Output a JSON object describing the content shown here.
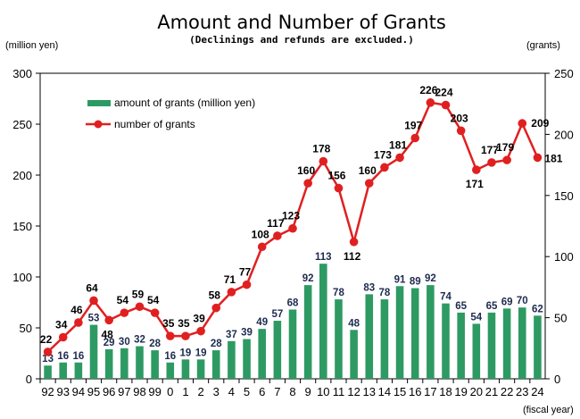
{
  "chart_data": {
    "type": "bar+line",
    "title": "Amount and Number of Grants",
    "subtitle": "(Declinings and refunds are excluded.)",
    "left_unit": "(million yen)",
    "right_unit": "(grants)",
    "x_unit": "(fiscal year)",
    "categories": [
      "92",
      "93",
      "94",
      "95",
      "96",
      "97",
      "98",
      "99",
      "0",
      "1",
      "2",
      "3",
      "4",
      "5",
      "6",
      "7",
      "8",
      "9",
      "10",
      "11",
      "12",
      "13",
      "14",
      "15",
      "16",
      "17",
      "18",
      "19",
      "20",
      "21",
      "22",
      "23",
      "24"
    ],
    "y_left": {
      "min": 0,
      "max": 300,
      "ticks": [
        0,
        50,
        100,
        150,
        200,
        250,
        300
      ]
    },
    "y_right": {
      "min": 0,
      "max": 250,
      "ticks": [
        0,
        50,
        100,
        150,
        200,
        250
      ]
    },
    "series": [
      {
        "name": "amount of grants (million yen)",
        "type": "bar",
        "axis": "left",
        "color": "#2e9a63",
        "values": [
          13,
          16,
          16,
          53,
          29,
          30,
          32,
          28,
          16,
          19,
          19,
          28,
          37,
          39,
          49,
          57,
          68,
          92,
          113,
          78,
          48,
          83,
          78,
          91,
          89,
          92,
          74,
          65,
          54,
          65,
          69,
          70,
          62
        ]
      },
      {
        "name": "number of grants",
        "type": "line",
        "axis": "right",
        "color": "#e02020",
        "values": [
          22,
          34,
          46,
          64,
          48,
          54,
          59,
          54,
          35,
          35,
          39,
          58,
          71,
          77,
          108,
          117,
          123,
          160,
          178,
          156,
          112,
          160,
          173,
          181,
          197,
          226,
          224,
          203,
          171,
          177,
          179,
          209,
          181
        ]
      }
    ]
  }
}
